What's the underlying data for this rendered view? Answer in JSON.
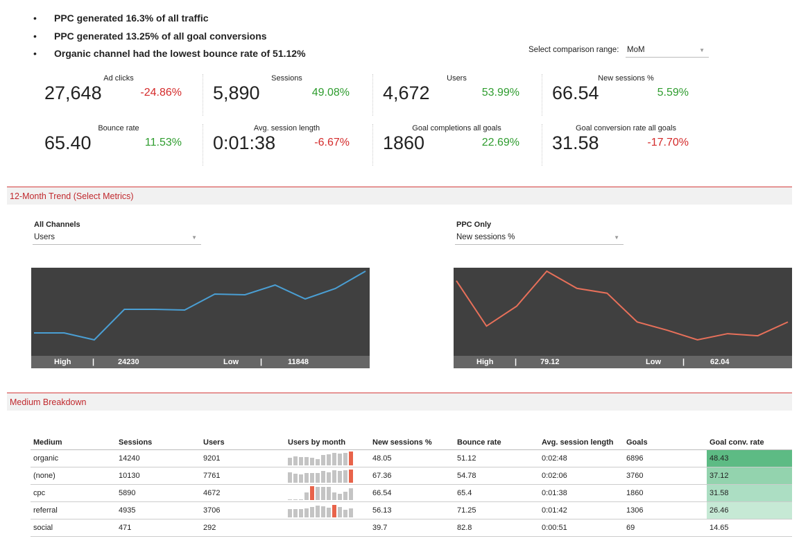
{
  "insights": [
    "PPC generated 16.3% of all traffic",
    "PPC generated 13.25% of all goal conversions",
    "Organic channel had the lowest bounce rate of 51.12%"
  ],
  "comparison": {
    "label": "Select comparison range:",
    "value": "MoM"
  },
  "kpis": [
    {
      "label": "Ad clicks",
      "value": "27,648",
      "change": "-24.86%",
      "trend": "negative"
    },
    {
      "label": "Sessions",
      "value": "5,890",
      "change": "49.08%",
      "trend": "positive"
    },
    {
      "label": "Users",
      "value": "4,672",
      "change": "53.99%",
      "trend": "positive"
    },
    {
      "label": "New sessions %",
      "value": "66.54",
      "change": "5.59%",
      "trend": "positive"
    },
    {
      "label": "Bounce rate",
      "value": "65.40",
      "change": "11.53%",
      "trend": "positive"
    },
    {
      "label": "Avg. session length",
      "value": "0:01:38",
      "change": "-6.67%",
      "trend": "negative"
    },
    {
      "label": "Goal completions all goals",
      "value": "1860",
      "change": "22.69%",
      "trend": "positive"
    },
    {
      "label": "Goal conversion rate all goals",
      "value": "31.58",
      "change": "-17.70%",
      "trend": "negative"
    }
  ],
  "trend_section": {
    "title": "12-Month Trend (Select Metrics)"
  },
  "chart_data": [
    {
      "type": "line",
      "title": "All Channels",
      "metric": "Users",
      "color": "#4a9fd4",
      "high_label": "High",
      "high": "24230",
      "low_label": "Low",
      "low": "11848",
      "values": [
        13099,
        13099,
        11848,
        17351,
        17351,
        17226,
        20103,
        19978,
        21729,
        19227,
        21104,
        24230
      ]
    },
    {
      "type": "line",
      "title": "PPC Only",
      "metric": "New sessions %",
      "color": "#e8705a",
      "high_label": "High",
      "high": "79.12",
      "low_label": "Low",
      "low": "62.04",
      "values": [
        76.73,
        65.46,
        70.41,
        79.12,
        74.85,
        73.65,
        66.48,
        64.43,
        62.04,
        63.58,
        63.06,
        66.48
      ]
    }
  ],
  "breakdown": {
    "title": "Medium Breakdown",
    "columns": [
      "Medium",
      "Sessions",
      "Users",
      "Users by month",
      "New sessions %",
      "Bounce rate",
      "Avg. session length",
      "Goals",
      "Goal conv. rate"
    ],
    "rows": [
      {
        "cells": [
          "organic",
          "14240",
          "9201",
          "",
          "48.05",
          "51.12",
          "0:02:48",
          "6896",
          "48.43"
        ],
        "bars": [
          6,
          7,
          6.5,
          6.5,
          6,
          5,
          8,
          8.5,
          10,
          9,
          10,
          11
        ],
        "hl": 11,
        "rate_color": "#5dbb84"
      },
      {
        "cells": [
          "(none)",
          "10130",
          "7761",
          "",
          "67.36",
          "54.78",
          "0:02:06",
          "3760",
          "37.12"
        ],
        "bars": [
          8,
          7,
          6.5,
          7.5,
          7.5,
          7.5,
          9,
          8,
          10,
          9,
          10,
          10.5
        ],
        "hl": 11,
        "rate_color": "#93d3ae"
      },
      {
        "cells": [
          "cpc",
          "5890",
          "4672",
          "",
          "66.54",
          "65.4",
          "0:01:38",
          "1860",
          "31.58"
        ],
        "bars": [
          0.5,
          0.5,
          0.5,
          6,
          11,
          10.5,
          10.5,
          10.5,
          6,
          5,
          6.5,
          9
        ],
        "hl": 4,
        "rate_color": "#acdec3"
      },
      {
        "cells": [
          "referral",
          "4935",
          "3706",
          "",
          "56.13",
          "71.25",
          "0:01:42",
          "1306",
          "26.46"
        ],
        "bars": [
          6.5,
          6.5,
          6.5,
          7,
          8,
          9,
          8.5,
          7.5,
          10,
          8,
          6,
          7
        ],
        "hl": 8,
        "rate_color": "#c6e9d5"
      },
      {
        "cells": [
          "social",
          "471",
          "292",
          "",
          "39.7",
          "82.8",
          "0:00:51",
          "69",
          "14.65"
        ],
        "bars": [],
        "hl": -1,
        "rate_color": "#ffffff"
      }
    ]
  }
}
